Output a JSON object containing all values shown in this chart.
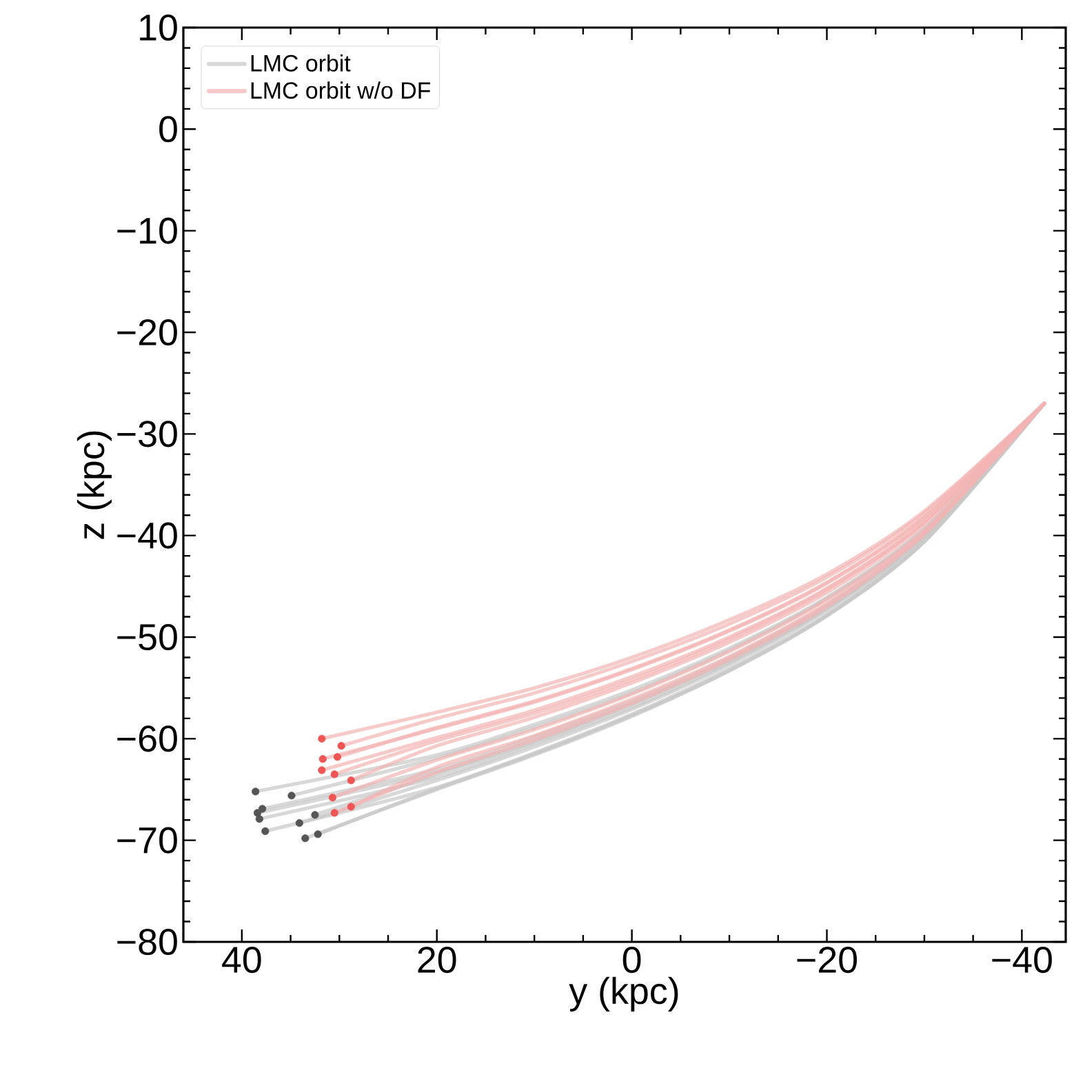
{
  "chart_data": {
    "type": "line",
    "xlabel": "y (kpc)",
    "ylabel": "z (kpc)",
    "xlim": [
      46,
      -44.5
    ],
    "ylim": [
      -80,
      10
    ],
    "xticks": [
      40,
      20,
      0,
      {
        "value": -20,
        "label": "−20"
      },
      {
        "value": -40,
        "label": "−40"
      }
    ],
    "yticks": [
      10,
      0,
      {
        "value": -10,
        "label": "−10"
      },
      {
        "value": -20,
        "label": "−20"
      },
      {
        "value": -30,
        "label": "−30"
      },
      {
        "value": -40,
        "label": "−40"
      },
      {
        "value": -50,
        "label": "−50"
      },
      {
        "value": -60,
        "label": "−60"
      },
      {
        "value": -70,
        "label": "−70"
      },
      {
        "value": -80,
        "label": "−80"
      }
    ],
    "legend": "top left",
    "grid": false,
    "series": [
      {
        "name": "LMC orbit",
        "type": "line",
        "color": "#c8c8c8",
        "x": [
          38.6,
          20,
          10,
          0,
          -10,
          -20,
          -30,
          -42.3
        ],
        "values": [
          -65.2,
          -61.6,
          -58.6,
          -55.2,
          -51.1,
          -46.1,
          -39.3,
          -27
        ]
      },
      {
        "type": "line",
        "color": "#c8c8c8",
        "x": [
          34.9,
          20,
          10,
          0,
          -10,
          -20,
          -30,
          -42.3
        ],
        "values": [
          -65.6,
          -61.9,
          -58.9,
          -55.5,
          -51.3,
          -46.2,
          -39.4,
          -27
        ]
      },
      {
        "type": "line",
        "color": "#c8c8c8",
        "x": [
          37.9,
          20,
          10,
          0,
          -10,
          -20,
          -30,
          -42.3
        ],
        "values": [
          -66.9,
          -63.0,
          -59.8,
          -56.3,
          -52.0,
          -46.8,
          -39.8,
          -27
        ]
      },
      {
        "type": "line",
        "color": "#c8c8c8",
        "x": [
          38.4,
          20,
          10,
          0,
          -10,
          -20,
          -30,
          -42.3
        ],
        "values": [
          -67.3,
          -63.3,
          -60.1,
          -56.5,
          -52.2,
          -47.0,
          -39.9,
          -27
        ]
      },
      {
        "type": "line",
        "color": "#c8c8c8",
        "x": [
          38.2,
          20,
          10,
          0,
          -10,
          -20,
          -30,
          -42.3
        ],
        "values": [
          -67.9,
          -63.8,
          -60.5,
          -56.9,
          -52.5,
          -47.2,
          -40.1,
          -27
        ]
      },
      {
        "type": "line",
        "color": "#c8c8c8",
        "x": [
          37.6,
          20,
          10,
          0,
          -10,
          -20,
          -30,
          -42.3
        ],
        "values": [
          -69.1,
          -64.8,
          -61.4,
          -57.6,
          -53.1,
          -47.8,
          -40.5,
          -27
        ]
      },
      {
        "type": "line",
        "color": "#c8c8c8",
        "x": [
          34.1,
          20,
          10,
          0,
          -10,
          -20,
          -30,
          -42.3
        ],
        "values": [
          -68.3,
          -64.1,
          -60.8,
          -57.1,
          -52.7,
          -47.4,
          -40.2,
          -27
        ]
      },
      {
        "type": "line",
        "color": "#c8c8c8",
        "x": [
          32.5,
          20,
          10,
          0,
          -10,
          -20,
          -30,
          -42.3
        ],
        "values": [
          -67.5,
          -63.5,
          -60.3,
          -56.6,
          -52.3,
          -47.1,
          -40.0,
          -27
        ]
      },
      {
        "type": "line",
        "color": "#c8c8c8",
        "x": [
          33.5,
          20,
          10,
          0,
          -10,
          -20,
          -30,
          -42.3
        ],
        "values": [
          -69.8,
          -65.0,
          -61.6,
          -57.8,
          -53.3,
          -47.9,
          -40.6,
          -27
        ]
      },
      {
        "type": "line",
        "color": "#c8c8c8",
        "x": [
          32.2,
          20,
          10,
          0,
          -10,
          -20,
          -30,
          -42.3
        ],
        "values": [
          -69.4,
          -64.9,
          -61.5,
          -57.7,
          -53.3,
          -47.9,
          -40.6,
          -27
        ]
      },
      {
        "name": "LMC orbit w/o DF",
        "type": "line",
        "color": "#f4b4b4",
        "x": [
          31.8,
          20,
          10,
          0,
          -10,
          -20,
          -30,
          -42.3
        ],
        "values": [
          -60.0,
          -57.4,
          -55.0,
          -52.0,
          -48.3,
          -43.8,
          -37.6,
          -27
        ]
      },
      {
        "type": "line",
        "color": "#f4b4b4",
        "x": [
          29.8,
          20,
          10,
          0,
          -10,
          -20,
          -30,
          -42.3
        ],
        "values": [
          -60.7,
          -58.0,
          -55.5,
          -52.4,
          -48.7,
          -44.1,
          -37.8,
          -27
        ]
      },
      {
        "type": "line",
        "color": "#f4b4b4",
        "x": [
          31.7,
          20,
          10,
          0,
          -10,
          -20,
          -30,
          -42.3
        ],
        "values": [
          -62.0,
          -59.0,
          -56.4,
          -53.2,
          -49.4,
          -44.7,
          -38.2,
          -27
        ]
      },
      {
        "type": "line",
        "color": "#f4b4b4",
        "x": [
          30.2,
          20,
          10,
          0,
          -10,
          -20,
          -30,
          -42.3
        ],
        "values": [
          -61.8,
          -58.9,
          -56.3,
          -53.1,
          -49.3,
          -44.6,
          -38.2,
          -27
        ]
      },
      {
        "type": "line",
        "color": "#f4b4b4",
        "x": [
          31.8,
          20,
          10,
          0,
          -10,
          -20,
          -30,
          -42.3
        ],
        "values": [
          -63.1,
          -59.9,
          -57.2,
          -53.9,
          -50.0,
          -45.2,
          -38.6,
          -27
        ]
      },
      {
        "type": "line",
        "color": "#f4b4b4",
        "x": [
          30.5,
          20,
          10,
          0,
          -10,
          -20,
          -30,
          -42.3
        ],
        "values": [
          -63.5,
          -60.2,
          -57.5,
          -54.2,
          -50.2,
          -45.3,
          -38.7,
          -27
        ]
      },
      {
        "type": "line",
        "color": "#f4b4b4",
        "x": [
          28.8,
          20,
          10,
          0,
          -10,
          -20,
          -30,
          -42.3
        ],
        "values": [
          -64.1,
          -60.7,
          -57.9,
          -54.5,
          -50.5,
          -45.6,
          -38.9,
          -27
        ]
      },
      {
        "type": "line",
        "color": "#f4b4b4",
        "x": [
          30.7,
          20,
          10,
          0,
          -10,
          -20,
          -30,
          -42.3
        ],
        "values": [
          -65.8,
          -62.1,
          -59.1,
          -55.6,
          -51.4,
          -46.3,
          -39.5,
          -27
        ]
      },
      {
        "type": "line",
        "color": "#f4b4b4",
        "x": [
          28.8,
          20,
          10,
          0,
          -10,
          -20,
          -30,
          -42.3
        ],
        "values": [
          -66.7,
          -62.8,
          -59.7,
          -56.1,
          -51.9,
          -46.7,
          -39.7,
          -27
        ]
      },
      {
        "type": "line",
        "color": "#f4b4b4",
        "x": [
          30.5,
          20,
          10,
          0,
          -10,
          -20,
          -30,
          -42.3
        ],
        "values": [
          -67.3,
          -63.3,
          -60.1,
          -56.5,
          -52.2,
          -47.0,
          -39.9,
          -27
        ]
      },
      {
        "type": "scatter",
        "marker": "circle",
        "color": "#555555",
        "x": [
          38.6,
          34.9,
          37.9,
          38.4,
          38.2,
          37.6,
          34.1,
          32.5,
          33.5,
          32.2
        ],
        "values": [
          -65.2,
          -65.6,
          -66.9,
          -67.3,
          -67.9,
          -69.1,
          -68.3,
          -67.5,
          -69.8,
          -69.4
        ]
      },
      {
        "type": "scatter",
        "marker": "circle",
        "color": "#ee5555",
        "x": [
          31.8,
          29.8,
          31.7,
          30.2,
          31.8,
          30.5,
          28.8,
          30.7,
          28.8,
          30.5
        ],
        "values": [
          -60.0,
          -60.7,
          -62.0,
          -61.8,
          -63.1,
          -63.5,
          -64.1,
          -65.8,
          -66.7,
          -67.3
        ]
      }
    ]
  }
}
